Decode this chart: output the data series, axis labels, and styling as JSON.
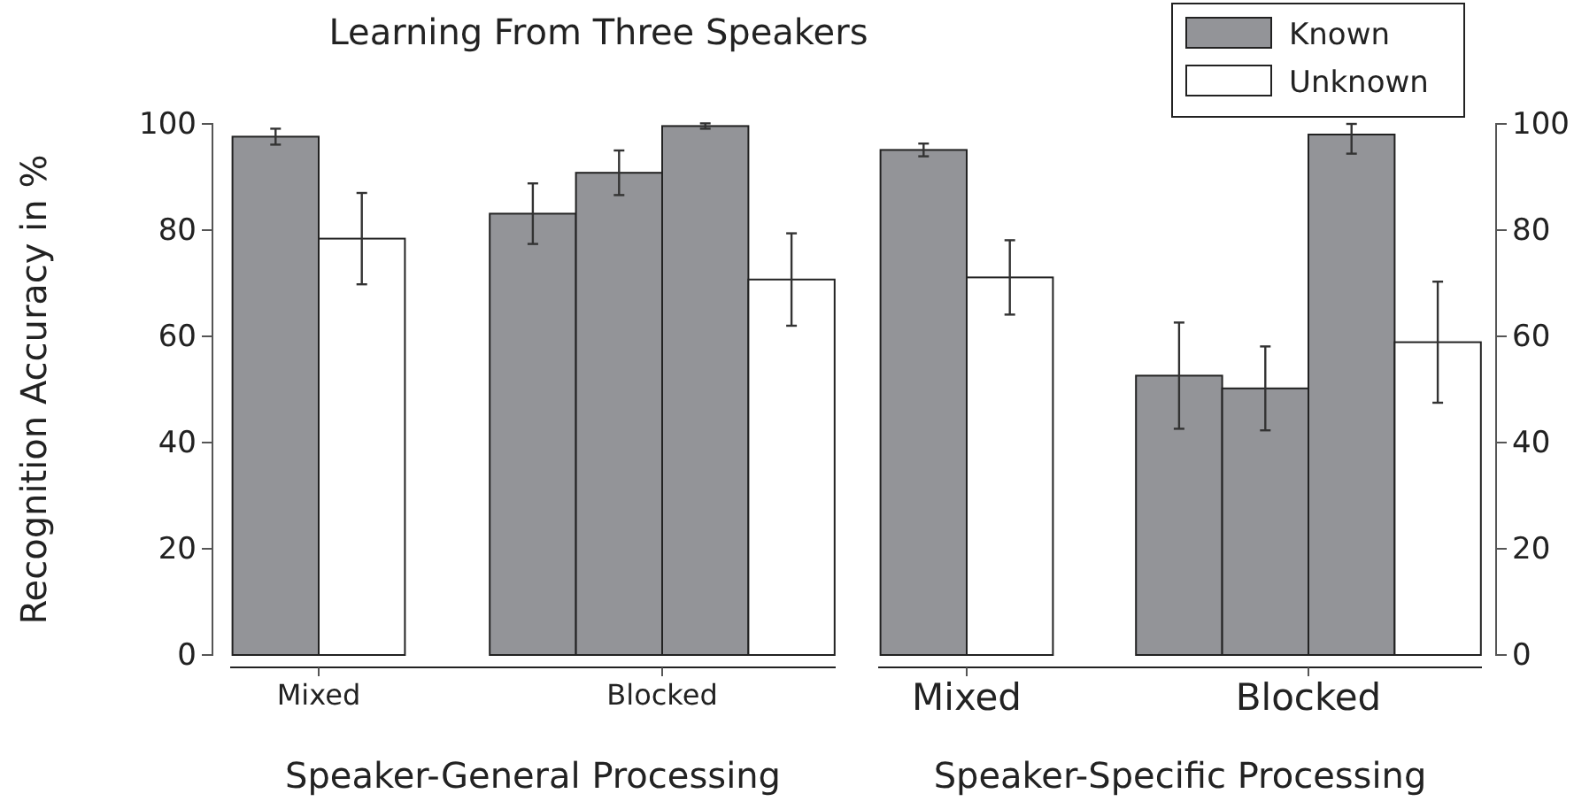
{
  "chart_data": [
    {
      "type": "bar",
      "title": "Learning From Three Speakers",
      "xlabel": "Speaker-General Processing",
      "ylabel": "Recognition Accuracy in %",
      "categories": [
        "Mixed",
        "Blocked"
      ],
      "ylim": [
        0,
        100
      ],
      "yticks": [
        0,
        20,
        40,
        60,
        80,
        100
      ],
      "grid": false,
      "series": [
        {
          "color": "#939498",
          "values": [
            97.6,
            83.1
          ],
          "errors": [
            1.5,
            5.7
          ]
        },
        {
          "color": "#939498",
          "values": [
            null,
            90.8
          ],
          "errors": [
            null,
            4.2
          ]
        },
        {
          "color": "#939498",
          "values": [
            null,
            99.6
          ],
          "errors": [
            null,
            0.5
          ]
        },
        {
          "color": "#ffffff",
          "values": [
            78.4,
            70.7
          ],
          "errors": [
            8.6,
            8.7
          ]
        }
      ]
    },
    {
      "type": "bar",
      "xlabel": "Speaker-Specific Processing",
      "categories": [
        "Mixed",
        "Blocked"
      ],
      "ylim": [
        0,
        100
      ],
      "yticks": [
        0,
        20,
        40,
        60,
        80,
        100
      ],
      "grid": false,
      "legend": "top right",
      "series": [
        {
          "name": "Known",
          "color": "#939498",
          "values": [
            95.1,
            52.6
          ],
          "errors": [
            1.2,
            10
          ]
        },
        {
          "color": "#939498",
          "values": [
            null,
            50.2
          ],
          "errors": [
            null,
            7.9
          ]
        },
        {
          "color": "#939498",
          "values": [
            null,
            98
          ],
          "errors": [
            null,
            [
              94.4,
              100
            ]
          ]
        },
        {
          "name": "Unknown",
          "color": "#ffffff",
          "values": [
            71.1,
            58.9
          ],
          "errors": [
            7,
            11.4
          ]
        }
      ]
    }
  ]
}
